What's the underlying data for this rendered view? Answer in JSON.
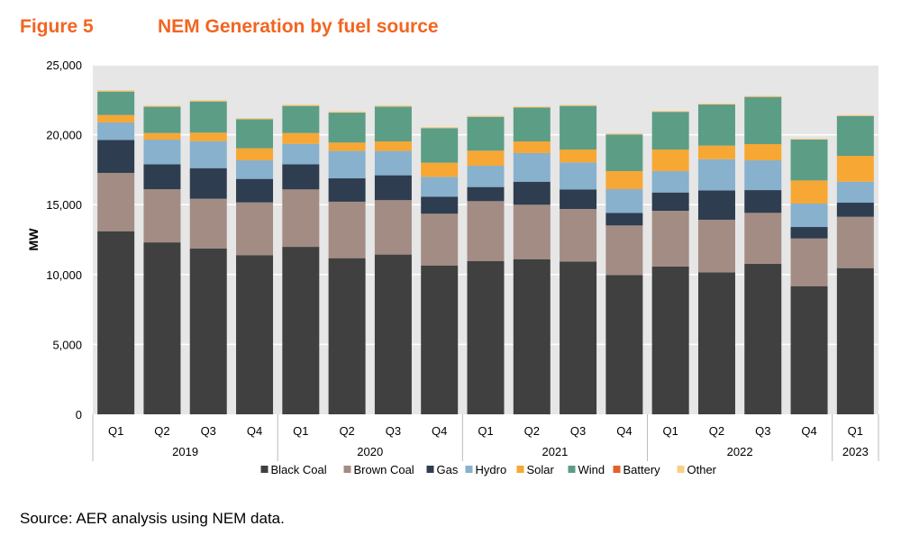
{
  "figure_label": "Figure 5",
  "title": "NEM Generation by fuel source",
  "source": "Source:  AER analysis using NEM data.",
  "chart_data": {
    "type": "bar",
    "stacked": true,
    "title": "NEM Generation by fuel source",
    "ylabel": "MW",
    "xlabel": "",
    "ylim": [
      0,
      25000
    ],
    "yticks": [
      "0",
      "5,000",
      "10,000",
      "15,000",
      "20,000",
      "25,000"
    ],
    "ytick_values": [
      0,
      5000,
      10000,
      15000,
      20000,
      25000
    ],
    "grid": true,
    "legend": "bottom",
    "categories": [
      "Q1",
      "Q2",
      "Q3",
      "Q4",
      "Q1",
      "Q2",
      "Q3",
      "Q4",
      "Q1",
      "Q2",
      "Q3",
      "Q4",
      "Q1",
      "Q2",
      "Q3",
      "Q4",
      "Q1"
    ],
    "groups": [
      {
        "label": "2019",
        "count": 4
      },
      {
        "label": "2020",
        "count": 4
      },
      {
        "label": "2021",
        "count": 4
      },
      {
        "label": "2022",
        "count": 4
      },
      {
        "label": "2023",
        "count": 1
      }
    ],
    "series": [
      {
        "name": "Black Coal",
        "color": "#404040",
        "values": [
          13100,
          12300,
          11860,
          11390,
          11980,
          11170,
          11430,
          10650,
          10970,
          11100,
          10930,
          9970,
          10570,
          10160,
          10760,
          9170,
          10460
        ]
      },
      {
        "name": "Brown Coal",
        "color": "#a38c83",
        "values": [
          4170,
          3800,
          3560,
          3770,
          4110,
          4040,
          3890,
          3700,
          4280,
          3890,
          3760,
          3540,
          3990,
          3760,
          3650,
          3410,
          3670
        ]
      },
      {
        "name": "Gas",
        "color": "#2e3d4f",
        "values": [
          2360,
          1790,
          2190,
          1680,
          1800,
          1670,
          1780,
          1220,
          1010,
          1650,
          1400,
          900,
          1310,
          2100,
          1630,
          820,
          1010
        ]
      },
      {
        "name": "Hydro",
        "color": "#87b1cd",
        "values": [
          1250,
          1760,
          1930,
          1330,
          1460,
          1960,
          1740,
          1420,
          1520,
          2050,
          1930,
          1700,
          1530,
          2230,
          2130,
          1680,
          1500
        ]
      },
      {
        "name": "Solar",
        "color": "#f7a734",
        "values": [
          530,
          470,
          610,
          860,
          770,
          600,
          680,
          1010,
          1080,
          830,
          920,
          1290,
          1540,
          970,
          1160,
          1650,
          1850
        ]
      },
      {
        "name": "Wind",
        "color": "#5c9d86",
        "values": [
          1680,
          1880,
          2230,
          2080,
          1940,
          2140,
          2490,
          2470,
          2420,
          2430,
          3120,
          2620,
          2690,
          2940,
          3370,
          2920,
          2840
        ]
      },
      {
        "name": "Battery",
        "color": "#e3602b",
        "values": [
          5,
          5,
          5,
          5,
          5,
          5,
          5,
          5,
          5,
          5,
          5,
          5,
          10,
          10,
          10,
          10,
          15
        ]
      },
      {
        "name": "Other",
        "color": "#f8cf8a",
        "values": [
          100,
          100,
          100,
          80,
          100,
          90,
          90,
          80,
          80,
          80,
          80,
          80,
          70,
          70,
          70,
          70,
          70
        ]
      }
    ]
  }
}
